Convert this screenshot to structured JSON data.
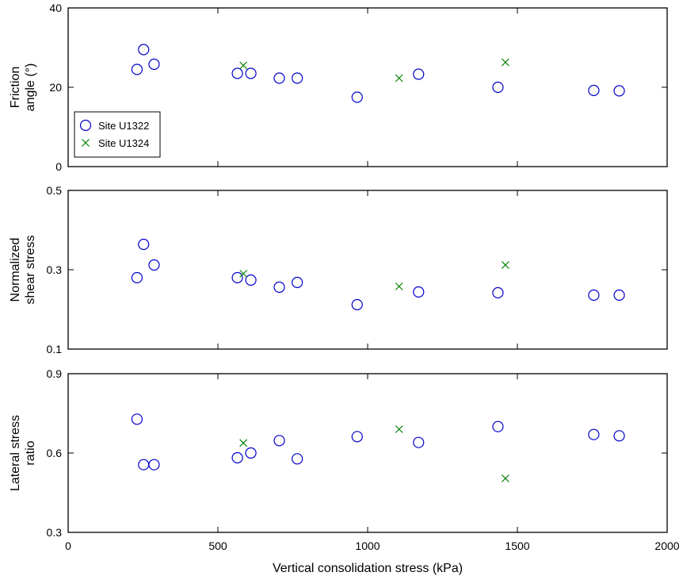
{
  "chart_data": {
    "type": "scatter",
    "shared_x": {
      "label": "Vertical consolidation stress (kPa)",
      "lim": [
        0,
        2000
      ],
      "ticks": [
        0,
        500,
        1000,
        1500,
        2000
      ]
    },
    "series_styles": [
      {
        "name": "Site U1322",
        "marker": "circle",
        "color": "#0000cc"
      },
      {
        "name": "Site U1324",
        "marker": "x",
        "color": "#008000"
      }
    ],
    "legend": {
      "panel": 0,
      "placement": "lower-left"
    },
    "panels": [
      {
        "ylabel": [
          "Friction",
          "angle (°)"
        ],
        "ylim": [
          0,
          40
        ],
        "yticks": [
          0,
          20,
          40
        ],
        "series": [
          {
            "name": "Site U1322",
            "points": [
              [
                230,
                24.5
              ],
              [
                252,
                29.5
              ],
              [
                287,
                25.8
              ],
              [
                565,
                23.5
              ],
              [
                610,
                23.5
              ],
              [
                705,
                22.3
              ],
              [
                765,
                22.3
              ],
              [
                965,
                17.5
              ],
              [
                1170,
                23.3
              ],
              [
                1435,
                20.0
              ],
              [
                1755,
                19.2
              ],
              [
                1840,
                19.1
              ]
            ]
          },
          {
            "name": "Site U1324",
            "points": [
              [
                585,
                25.5
              ],
              [
                1105,
                22.3
              ],
              [
                1460,
                26.3
              ]
            ]
          }
        ]
      },
      {
        "ylabel": [
          "Normalized",
          "shear stress"
        ],
        "ylim": [
          0.1,
          0.5
        ],
        "yticks": [
          0.1,
          0.3,
          0.5
        ],
        "series": [
          {
            "name": "Site U1322",
            "points": [
              [
                230,
                0.28
              ],
              [
                252,
                0.364
              ],
              [
                287,
                0.312
              ],
              [
                565,
                0.28
              ],
              [
                610,
                0.274
              ],
              [
                705,
                0.256
              ],
              [
                765,
                0.268
              ],
              [
                965,
                0.212
              ],
              [
                1170,
                0.244
              ],
              [
                1435,
                0.242
              ],
              [
                1755,
                0.236
              ],
              [
                1840,
                0.236
              ]
            ]
          },
          {
            "name": "Site U1324",
            "points": [
              [
                585,
                0.29
              ],
              [
                1105,
                0.258
              ],
              [
                1460,
                0.312
              ]
            ]
          }
        ]
      },
      {
        "ylabel": [
          "Lateral stress",
          "ratio"
        ],
        "ylim": [
          0.3,
          0.9
        ],
        "yticks": [
          0.3,
          0.6,
          0.9
        ],
        "series": [
          {
            "name": "Site U1322",
            "points": [
              [
                230,
                0.728
              ],
              [
                252,
                0.556
              ],
              [
                287,
                0.556
              ],
              [
                565,
                0.582
              ],
              [
                610,
                0.6
              ],
              [
                705,
                0.647
              ],
              [
                765,
                0.578
              ],
              [
                965,
                0.662
              ],
              [
                1170,
                0.64
              ],
              [
                1435,
                0.7
              ],
              [
                1755,
                0.67
              ],
              [
                1840,
                0.665
              ]
            ]
          },
          {
            "name": "Site U1324",
            "points": [
              [
                585,
                0.638
              ],
              [
                1105,
                0.69
              ],
              [
                1460,
                0.504
              ]
            ]
          }
        ]
      }
    ]
  }
}
